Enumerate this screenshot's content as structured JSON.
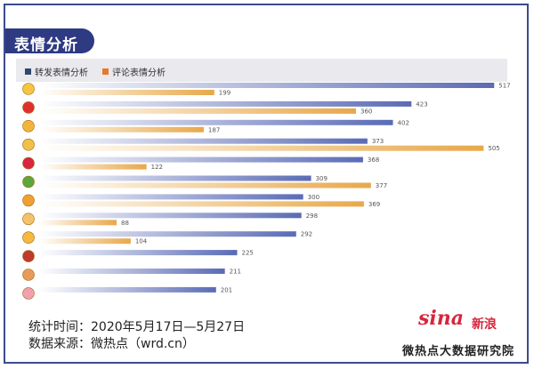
{
  "header": {
    "title": "表情分析"
  },
  "legend": [
    {
      "label": "转发表情分析",
      "color": "#2d4a6e"
    },
    {
      "label": "评论表情分析",
      "color": "#e8782a"
    }
  ],
  "chart_data": {
    "type": "bar",
    "orientation": "horizontal",
    "categories": [
      "grin",
      "heart",
      "doge",
      "cat",
      "like",
      "gift",
      "rose-face",
      "victory",
      "tongue",
      "strong",
      "pray",
      "pig"
    ],
    "category_icons": [
      "grin-emoji-icon",
      "heart-emoji-icon",
      "doge-emoji-icon",
      "cat-emoji-icon",
      "like-badge-icon",
      "gift-emoji-icon",
      "kiss-emoji-icon",
      "victory-hand-icon",
      "laugh-emoji-icon",
      "bundle-emoji-icon",
      "bear-emoji-icon",
      "pig-emoji-icon"
    ],
    "series": [
      {
        "name": "转发表情分析",
        "values": [
          517,
          423,
          402,
          373,
          368,
          309,
          300,
          298,
          292,
          225,
          211,
          201
        ]
      },
      {
        "name": "评论表情分析",
        "values": [
          199,
          360,
          187,
          505,
          122,
          377,
          369,
          88,
          104,
          null,
          null,
          null
        ]
      }
    ],
    "xlim": [
      0,
      540
    ]
  },
  "footer": {
    "period": "统计时间：2020年5月17日—5月27日",
    "source": "数据来源：微热点（wrd.cn）"
  },
  "logo": {
    "brand": "sina",
    "brand_cn": "新浪",
    "institute": "微热点大数据研究院"
  }
}
